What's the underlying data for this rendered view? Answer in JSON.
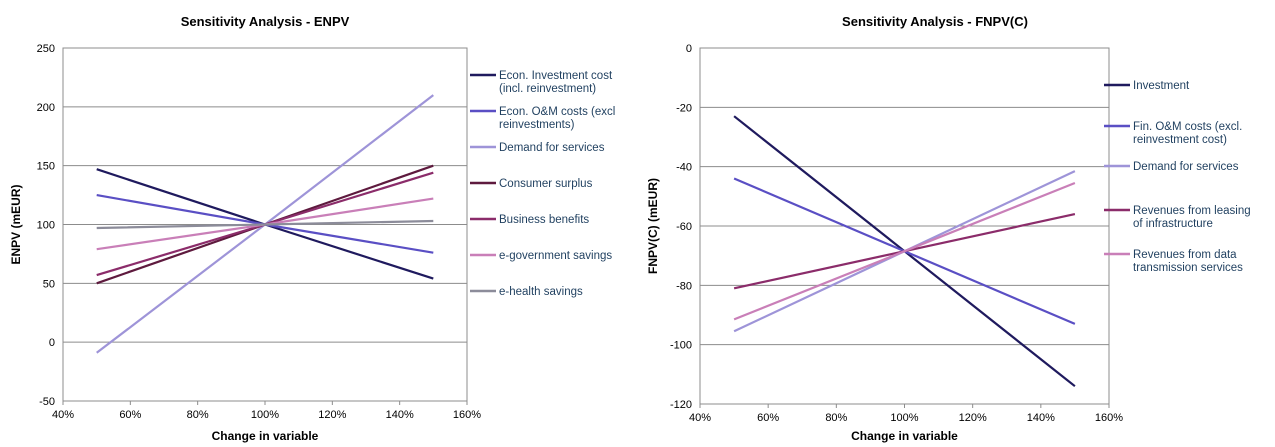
{
  "chart_data": [
    {
      "type": "line",
      "title": "Sensitivity Analysis - ENPV",
      "xlabel": "Change in variable",
      "ylabel": "ENPV (mEUR)",
      "xlim": [
        0.4,
        1.6
      ],
      "ylim": [
        -50,
        250
      ],
      "xticks": [
        "40%",
        "60%",
        "80%",
        "100%",
        "120%",
        "140%",
        "160%"
      ],
      "yticks": [
        "-50",
        "0",
        "50",
        "100",
        "150",
        "200",
        "250"
      ],
      "x": [
        0.5,
        1.0,
        1.5
      ],
      "grid": "horizontal",
      "legend_position": "right",
      "series": [
        {
          "name": "Econ. Investment cost (incl. reinvestment)",
          "label_lines": [
            "Econ. Investment cost",
            "(incl. reinvestment)"
          ],
          "color": "#1f1a5e",
          "values": [
            147,
            100,
            54
          ]
        },
        {
          "name": "Econ. O&M costs (excl reinvestments)",
          "label_lines": [
            "Econ. O&M costs (excl",
            "reinvestments)"
          ],
          "color": "#5a4fc4",
          "values": [
            125,
            100,
            76
          ]
        },
        {
          "name": "Demand for services",
          "label_lines": [
            "Demand for services"
          ],
          "color": "#9e94d8",
          "values": [
            -9,
            100,
            210
          ]
        },
        {
          "name": "Consumer surplus",
          "label_lines": [
            "Consumer surplus"
          ],
          "color": "#5e1a3e",
          "values": [
            50,
            100,
            150
          ]
        },
        {
          "name": "Business benefits",
          "label_lines": [
            "Business benefits"
          ],
          "color": "#8b2c6a",
          "values": [
            57,
            100,
            144
          ]
        },
        {
          "name": "e-government savings",
          "label_lines": [
            "e-government savings"
          ],
          "color": "#c97fb8",
          "values": [
            79,
            100,
            122
          ]
        },
        {
          "name": "e-health savings",
          "label_lines": [
            "e-health savings"
          ],
          "color": "#8c8c9a",
          "values": [
            97,
            100,
            103
          ]
        }
      ]
    },
    {
      "type": "line",
      "title": "Sensitivity Analysis - FNPV(C)",
      "xlabel": "Change in variable",
      "ylabel": "FNPV(C) (mEUR)",
      "xlim": [
        0.4,
        1.6
      ],
      "ylim": [
        -120,
        0
      ],
      "xticks": [
        "40%",
        "60%",
        "80%",
        "100%",
        "120%",
        "140%",
        "160%"
      ],
      "yticks": [
        "-120",
        "-100",
        "-80",
        "-60",
        "-40",
        "-20",
        "0"
      ],
      "x": [
        0.5,
        1.0,
        1.5
      ],
      "grid": "horizontal",
      "legend_position": "right",
      "series": [
        {
          "name": "Investment",
          "label_lines": [
            "Investment"
          ],
          "color": "#1f1a5e",
          "values": [
            -23,
            -68.5,
            -114
          ]
        },
        {
          "name": "Fin. O&M costs (excl. reinvestment cost)",
          "label_lines": [
            "Fin. O&M costs (excl.",
            "reinvestment cost)"
          ],
          "color": "#5a4fc4",
          "values": [
            -44,
            -68.5,
            -93
          ]
        },
        {
          "name": "Demand for services",
          "label_lines": [
            "Demand for services"
          ],
          "color": "#9e94d8",
          "values": [
            -95.5,
            -68.5,
            -41.5
          ]
        },
        {
          "name": "Revenues from leasing of infrastructure",
          "label_lines": [
            "Revenues from leasing",
            "of infrastructure"
          ],
          "color": "#8b2c6a",
          "values": [
            -81,
            -68.5,
            -56
          ]
        },
        {
          "name": "Revenues from data transmission services",
          "label_lines": [
            "Revenues from data",
            "transmission services"
          ],
          "color": "#c97fb8",
          "values": [
            -91.5,
            -68.5,
            -45.5
          ]
        }
      ]
    }
  ]
}
